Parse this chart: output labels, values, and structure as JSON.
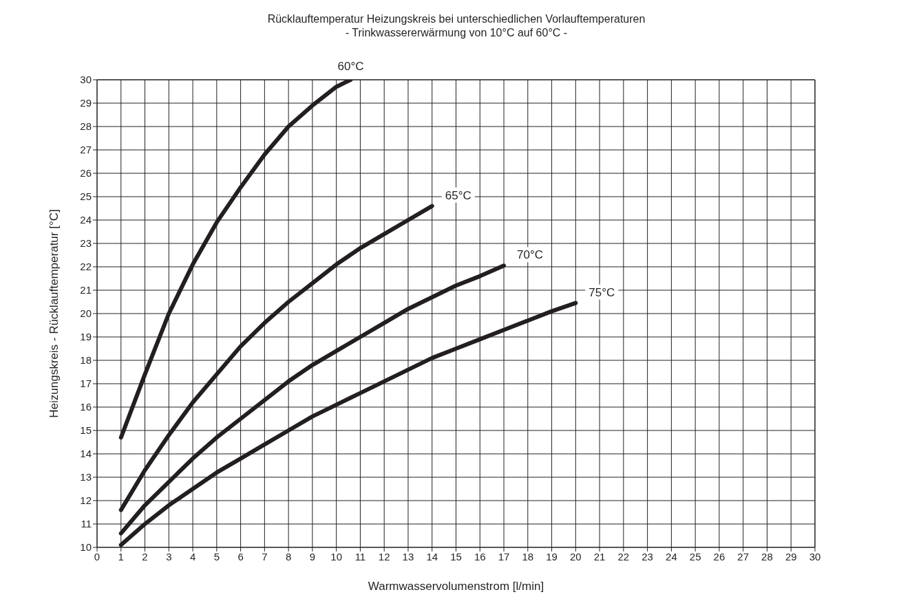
{
  "chart_data": {
    "type": "line",
    "title": "Rücklauftemperatur Heizungskreis bei unterschiedlichen Vorlauftemperaturen",
    "subtitle": "- Trinkwassererwärmung von 10°C auf 60°C -",
    "xlabel": "Warmwasservolumenstrom [l/min]",
    "ylabel": "Heizungskreis - Rücklauftemperatur [°C]",
    "xlim": [
      0,
      30
    ],
    "xticks": [
      0,
      1,
      2,
      3,
      4,
      5,
      6,
      7,
      8,
      9,
      10,
      11,
      12,
      13,
      14,
      15,
      16,
      17,
      18,
      19,
      20,
      21,
      22,
      23,
      24,
      25,
      26,
      27,
      28,
      29,
      30
    ],
    "ylim": [
      10,
      30
    ],
    "yticks": [
      10,
      11,
      12,
      13,
      14,
      15,
      16,
      17,
      18,
      19,
      20,
      21,
      22,
      23,
      24,
      25,
      26,
      27,
      28,
      29,
      30
    ],
    "grid": true,
    "legend": false,
    "marker": "none",
    "line_style": "solid",
    "series": [
      {
        "name": "60°C",
        "color": "#231f20",
        "x": [
          1,
          2,
          3,
          4,
          5,
          6,
          7,
          8,
          9,
          10,
          10.6
        ],
        "values": [
          14.7,
          17.4,
          20,
          22.1,
          23.9,
          25.4,
          26.8,
          28,
          28.9,
          29.7,
          30
        ]
      },
      {
        "name": "65°C",
        "color": "#231f20",
        "x": [
          1,
          2,
          3,
          4,
          5,
          6,
          7,
          8,
          9,
          10,
          11,
          12,
          13,
          14
        ],
        "values": [
          11.6,
          13.3,
          14.8,
          16.2,
          17.4,
          18.6,
          19.6,
          20.5,
          21.3,
          22.1,
          22.8,
          23.4,
          24,
          24.6
        ]
      },
      {
        "name": "70°C",
        "color": "#231f20",
        "x": [
          1,
          2,
          3,
          4,
          5,
          6,
          7,
          8,
          9,
          10,
          11,
          12,
          13,
          14,
          15,
          16,
          17
        ],
        "values": [
          10.6,
          11.8,
          12.8,
          13.8,
          14.7,
          15.5,
          16.3,
          17.1,
          17.8,
          18.4,
          19,
          19.6,
          20.2,
          20.7,
          21.2,
          21.6,
          22.05
        ]
      },
      {
        "name": "75°C",
        "color": "#231f20",
        "x": [
          1,
          2,
          3,
          4,
          5,
          6,
          7,
          8,
          9,
          10,
          11,
          12,
          13,
          14,
          15,
          16,
          17,
          18,
          19,
          20
        ],
        "values": [
          10.1,
          11,
          11.8,
          12.5,
          13.2,
          13.8,
          14.4,
          15,
          15.6,
          16.1,
          16.6,
          17.1,
          17.6,
          18.1,
          18.5,
          18.9,
          19.3,
          19.7,
          20.1,
          20.45
        ]
      }
    ]
  }
}
